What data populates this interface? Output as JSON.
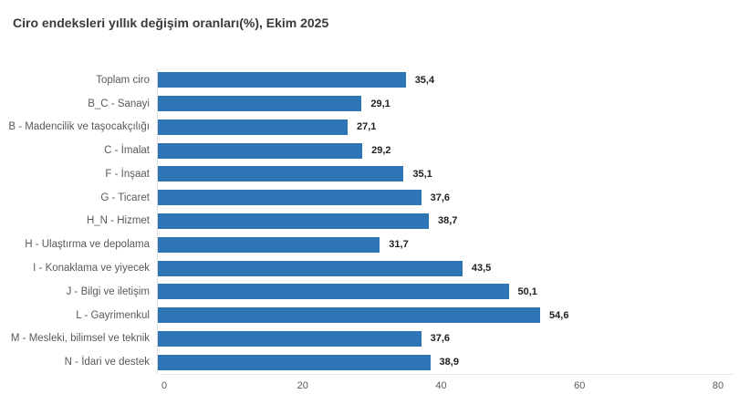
{
  "title": "Ciro endeksleri yıllık değişim oranları(%), Ekim 2025",
  "colors": {
    "bar": "#2e75b6",
    "axis_line": "#dedede",
    "baseline": "#e9e9e9",
    "category_text": "#595959",
    "value_text": "#1f1f1f",
    "title_text": "#3a3a3a",
    "background": "#ffffff"
  },
  "chart_data": {
    "type": "bar",
    "orientation": "horizontal",
    "title": "Ciro endeksleri yıllık değişim oranları(%), Ekim 2025",
    "categories": [
      "Toplam ciro",
      "B_C - Sanayi",
      "B - Madencilik ve taşocakçılığı",
      "C - İmalat",
      "F - İnşaat",
      "G - Ticaret",
      "H_N - Hizmet",
      "H - Ulaştırma ve depolama",
      "I - Konaklama ve yiyecek",
      "J - Bilgi ve iletişim",
      "L - Gayrimenkul",
      "M - Mesleki, bilimsel ve teknik",
      "N - İdari ve destek"
    ],
    "values": [
      35.4,
      29.1,
      27.1,
      29.2,
      35.1,
      37.6,
      38.7,
      31.7,
      43.5,
      50.1,
      54.6,
      37.6,
      38.9
    ],
    "value_labels": [
      "35,4",
      "29,1",
      "27,1",
      "29,2",
      "35,1",
      "37,6",
      "38,7",
      "31,7",
      "43,5",
      "50,1",
      "54,6",
      "37,6",
      "38,9"
    ],
    "xlabel": "",
    "ylabel": "",
    "xlim": [
      0,
      80
    ],
    "x_ticks": [
      0,
      20,
      40,
      60,
      80
    ],
    "grid": false,
    "legend": false,
    "bar_color": "#2e75b6"
  }
}
